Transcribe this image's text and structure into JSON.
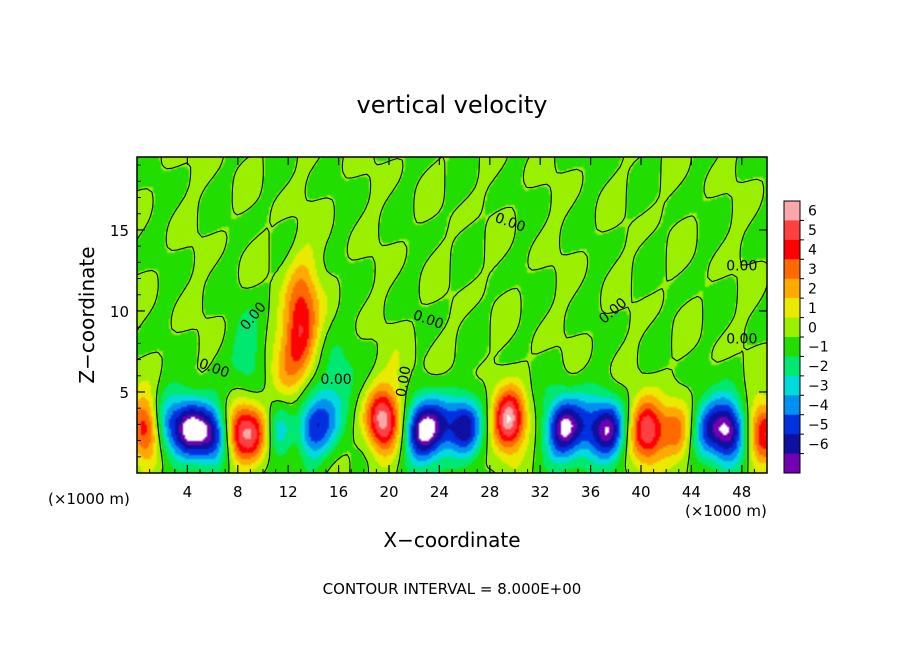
{
  "chart_data": {
    "type": "heatmap",
    "title": "vertical velocity",
    "xlabel": "X−coordinate",
    "ylabel": "Z−coordinate",
    "x_unit_left": "(×1000 m)",
    "x_unit_right": "(×1000 m)",
    "xlim": [
      0,
      50
    ],
    "ylim": [
      0,
      19.5
    ],
    "x_ticks": [
      4,
      8,
      12,
      16,
      20,
      24,
      28,
      32,
      36,
      40,
      44,
      48
    ],
    "y_ticks": [
      5,
      10,
      15
    ],
    "footer": "CONTOUR INTERVAL = 8.000E+00",
    "contour_labels": [
      {
        "text": "0.00",
        "x": 29.5,
        "y": 15.2,
        "rot": 20
      },
      {
        "text": "0.00",
        "x": 48.0,
        "y": 12.5,
        "rot": 0
      },
      {
        "text": "0.00",
        "x": 48.0,
        "y": 8.0,
        "rot": 0
      },
      {
        "text": "0.00",
        "x": 38.0,
        "y": 9.8,
        "rot": -40
      },
      {
        "text": "0.00",
        "x": 23.0,
        "y": 9.2,
        "rot": 20
      },
      {
        "text": "0.00",
        "x": 9.5,
        "y": 9.5,
        "rot": -50
      },
      {
        "text": "0.00",
        "x": 6.0,
        "y": 6.2,
        "rot": 20
      },
      {
        "text": "0.00",
        "x": 15.8,
        "y": 5.5,
        "rot": 0
      },
      {
        "text": "0.00",
        "x": 21.5,
        "y": 5.6,
        "rot": -80
      }
    ],
    "colorbar": {
      "labels": [
        "6",
        "5",
        "4",
        "3",
        "2",
        "1",
        "0",
        "−1",
        "−2",
        "−3",
        "−4",
        "−5",
        "−6"
      ],
      "colors": [
        "#f8a8a8",
        "#ff4040",
        "#ff0000",
        "#ff6a00",
        "#ffaa00",
        "#eaea00",
        "#9af000",
        "#22dd00",
        "#00e870",
        "#00dada",
        "#0090f0",
        "#0030e0",
        "#1010a0",
        "#7000b0"
      ]
    },
    "features": [
      {
        "x": 0.8,
        "y": 2.8,
        "w": 5
      },
      {
        "x": 2.2,
        "y": 3.0,
        "w": -3.5
      },
      {
        "x": 4.2,
        "y": 2.8,
        "w": -5.5
      },
      {
        "x": 6.0,
        "y": 2.4,
        "w": -5.2
      },
      {
        "x": 8.2,
        "y": 2.4,
        "w": 4.8
      },
      {
        "x": 9.6,
        "y": 2.6,
        "w": 3
      },
      {
        "x": 11.3,
        "y": 2.8,
        "w": -3.8
      },
      {
        "x": 12.8,
        "y": 2.8,
        "w": 4
      },
      {
        "x": 13.5,
        "y": 2.6,
        "w": -5.5
      },
      {
        "x": 15.0,
        "y": 3.6,
        "w": -3.0
      },
      {
        "x": 19.5,
        "y": 3.2,
        "w": 6
      },
      {
        "x": 22.5,
        "y": 2.6,
        "w": -5.5
      },
      {
        "x": 24.0,
        "y": 2.8,
        "w": -3.5
      },
      {
        "x": 26.0,
        "y": 2.8,
        "w": -5
      },
      {
        "x": 29.5,
        "y": 3.2,
        "w": 6
      },
      {
        "x": 33.8,
        "y": 2.8,
        "w": -6
      },
      {
        "x": 35.5,
        "y": 2.8,
        "w": -3
      },
      {
        "x": 37.4,
        "y": 2.6,
        "w": -5.5
      },
      {
        "x": 40.5,
        "y": 2.6,
        "w": 5.5
      },
      {
        "x": 42.8,
        "y": 2.6,
        "w": 3.2
      },
      {
        "x": 45.2,
        "y": 2.8,
        "w": -3.8
      },
      {
        "x": 47.0,
        "y": 2.6,
        "w": -5.8
      },
      {
        "x": 49.8,
        "y": 2.6,
        "w": 4.5
      },
      {
        "x": 12.8,
        "y": 8.5,
        "w": 3.8
      },
      {
        "x": 13.2,
        "y": 11.0,
        "w": 2.2
      },
      {
        "x": 9.0,
        "y": 7.6,
        "w": -1.8
      },
      {
        "x": 11.5,
        "y": 6.0,
        "w": 1.6
      },
      {
        "x": 16.0,
        "y": 6.2,
        "w": -1.2
      },
      {
        "x": 21.0,
        "y": 6.0,
        "w": 0.8
      }
    ]
  }
}
